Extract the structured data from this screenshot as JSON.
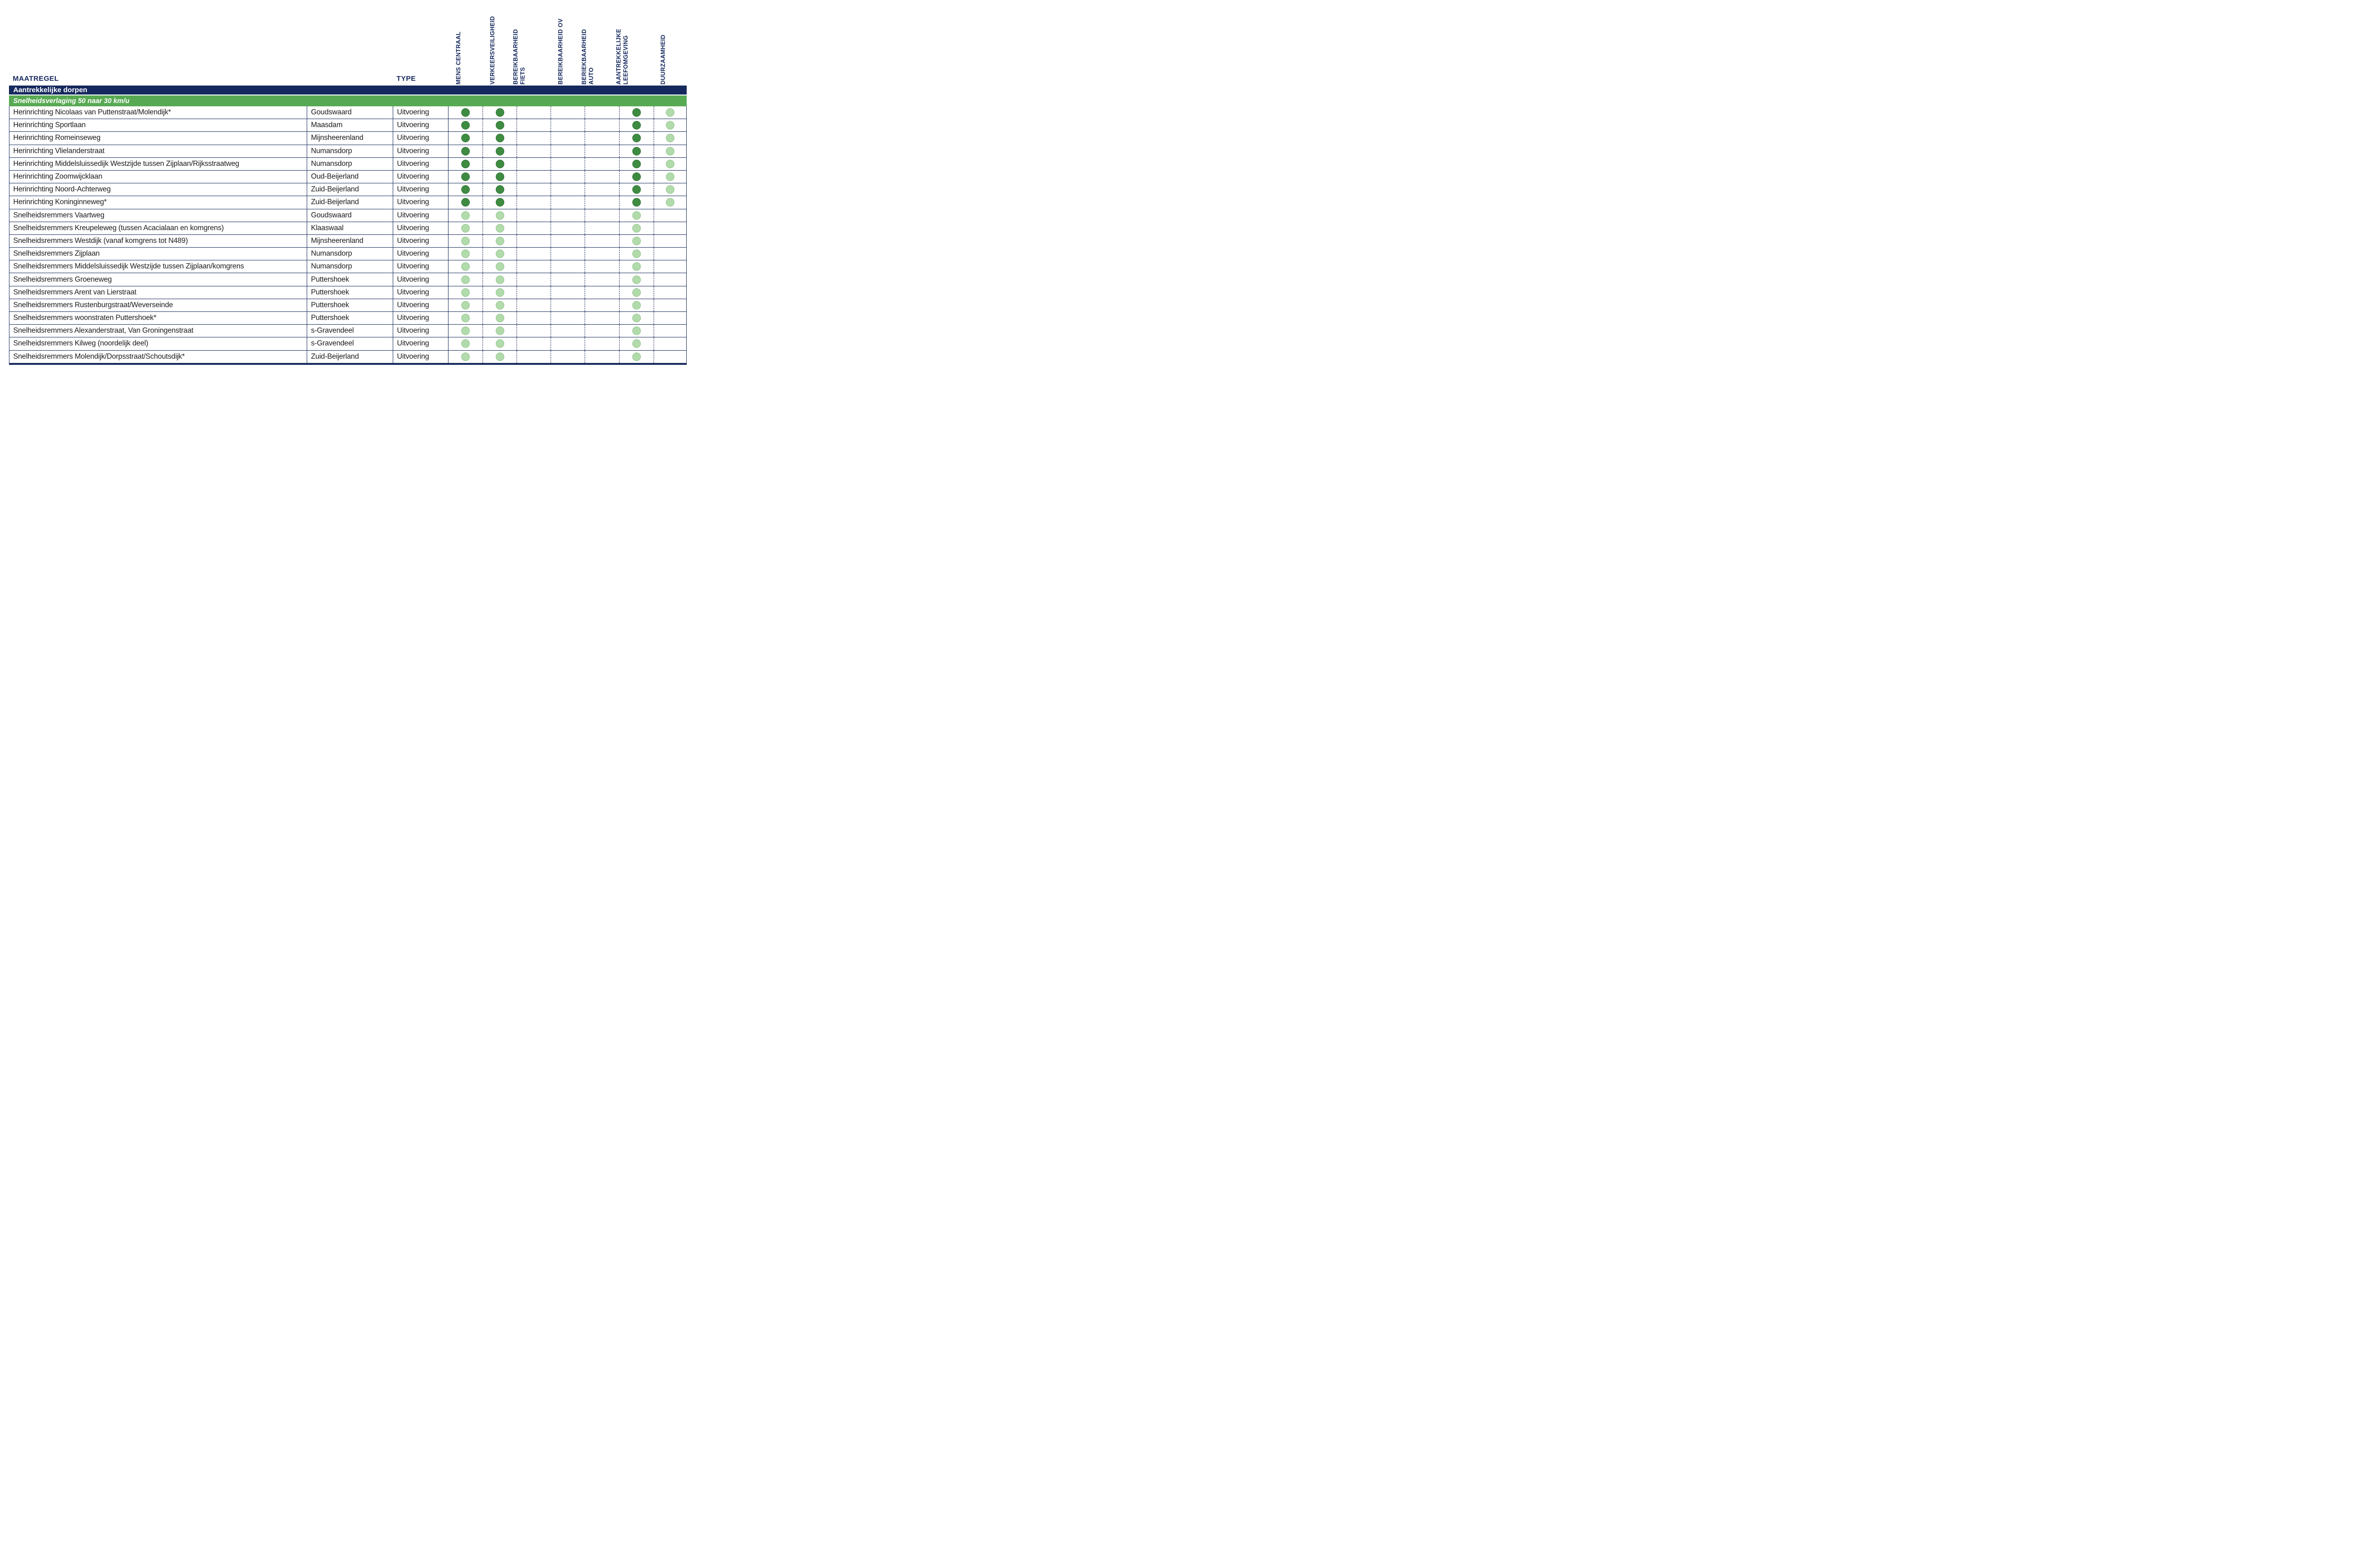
{
  "table": {
    "headers": {
      "maatregel": "MAATREGEL",
      "type": "TYPE"
    },
    "criteria_columns": [
      {
        "id": "mens-centraal",
        "label_lines": [
          "MENS CENTRAAL"
        ]
      },
      {
        "id": "verkeersveiligheid",
        "label_lines": [
          "VERKEERSVEILIGHEID"
        ]
      },
      {
        "id": "bereikbaarheid-fiets",
        "label_lines": [
          "BEREIKBAARHEID",
          "FIETS"
        ]
      },
      {
        "id": "bereikbaarheid-ov",
        "label_lines": [
          "BEREIKBAARHEID OV"
        ]
      },
      {
        "id": "beriekbaarheid-auto",
        "label_lines": [
          "BERIEKBAARHEID",
          "AUTO"
        ]
      },
      {
        "id": "aantrekkelijke-leefomgeving",
        "label_lines": [
          "AANTREKKELIJKE",
          "LEEFOMGEVING"
        ]
      },
      {
        "id": "duurzaamheid",
        "label_lines": [
          "DUURZAAMHEID"
        ]
      }
    ],
    "section_header": "Aantrekkelijke dorpen",
    "subsection_header": "Snelheidsverlaging 50 naar 30 km/u",
    "rows": [
      {
        "maatregel": "Herinrichting Nicolaas van Puttenstraat/Molendijk*",
        "plaats": "Goudswaard",
        "type": "Uitvoering",
        "dots": [
          "dark",
          "dark",
          "",
          "",
          "",
          "dark",
          "light"
        ]
      },
      {
        "maatregel": "Herinrichting Sportlaan",
        "plaats": "Maasdam",
        "type": "Uitvoering",
        "dots": [
          "dark",
          "dark",
          "",
          "",
          "",
          "dark",
          "light"
        ]
      },
      {
        "maatregel": "Herinrichting Romeinseweg",
        "plaats": "Mijnsheerenland",
        "type": "Uitvoering",
        "dots": [
          "dark",
          "dark",
          "",
          "",
          "",
          "dark",
          "light"
        ]
      },
      {
        "maatregel": "Herinrichting Vlielanderstraat",
        "plaats": "Numansdorp",
        "type": "Uitvoering",
        "dots": [
          "dark",
          "dark",
          "",
          "",
          "",
          "dark",
          "light"
        ]
      },
      {
        "maatregel": "Herinrichting Middelsluissedijk Westzijde tussen Zijplaan/Rijksstraatweg",
        "plaats": "Numansdorp",
        "type": "Uitvoering",
        "dots": [
          "dark",
          "dark",
          "",
          "",
          "",
          "dark",
          "light"
        ]
      },
      {
        "maatregel": "Herinrichting Zoomwijcklaan",
        "plaats": "Oud-Beijerland",
        "type": "Uitvoering",
        "dots": [
          "dark",
          "dark",
          "",
          "",
          "",
          "dark",
          "light"
        ]
      },
      {
        "maatregel": "Herinrichting Noord-Achterweg",
        "plaats": "Zuid-Beijerland",
        "type": "Uitvoering",
        "dots": [
          "dark",
          "dark",
          "",
          "",
          "",
          "dark",
          "light"
        ]
      },
      {
        "maatregel": "Herinrichting Koninginneweg*",
        "plaats": "Zuid-Beijerland",
        "type": "Uitvoering",
        "dots": [
          "dark",
          "dark",
          "",
          "",
          "",
          "dark",
          "light"
        ]
      },
      {
        "maatregel": "Snelheidsremmers Vaartweg",
        "plaats": "Goudswaard",
        "type": "Uitvoering",
        "dots": [
          "light",
          "light",
          "",
          "",
          "",
          "light",
          ""
        ]
      },
      {
        "maatregel": "Snelheidsremmers Kreupeleweg (tussen Acacialaan en komgrens)",
        "plaats": "Klaaswaal",
        "type": "Uitvoering",
        "dots": [
          "light",
          "light",
          "",
          "",
          "",
          "light",
          ""
        ]
      },
      {
        "maatregel": "Snelheidsremmers Westdijk (vanaf komgrens tot N489)",
        "plaats": "Mijnsheerenland",
        "type": "Uitvoering",
        "dots": [
          "light",
          "light",
          "",
          "",
          "",
          "light",
          ""
        ]
      },
      {
        "maatregel": "Snelheidsremmers Zijplaan",
        "plaats": "Numansdorp",
        "type": "Uitvoering",
        "dots": [
          "light",
          "light",
          "",
          "",
          "",
          "light",
          ""
        ]
      },
      {
        "maatregel": "Snelheidsremmers Middelsluissedijk Westzijde tussen Zijplaan/komgrens",
        "plaats": "Numansdorp",
        "type": "Uitvoering",
        "dots": [
          "light",
          "light",
          "",
          "",
          "",
          "light",
          ""
        ]
      },
      {
        "maatregel": "Snelheidsremmers Groeneweg",
        "plaats": "Puttershoek",
        "type": "Uitvoering",
        "dots": [
          "light",
          "light",
          "",
          "",
          "",
          "light",
          ""
        ]
      },
      {
        "maatregel": "Snelheidsremmers Arent van Lierstraat",
        "plaats": "Puttershoek",
        "type": "Uitvoering",
        "dots": [
          "light",
          "light",
          "",
          "",
          "",
          "light",
          ""
        ]
      },
      {
        "maatregel": "Snelheidsremmers Rustenburgstraat/Weverseinde",
        "plaats": "Puttershoek",
        "type": "Uitvoering",
        "dots": [
          "light",
          "light",
          "",
          "",
          "",
          "light",
          ""
        ]
      },
      {
        "maatregel": "Snelheidsremmers woonstraten Puttershoek*",
        "plaats": "Puttershoek",
        "type": "Uitvoering",
        "dots": [
          "light",
          "light",
          "",
          "",
          "",
          "light",
          ""
        ]
      },
      {
        "maatregel": "Snelheidsremmers Alexanderstraat, Van Groningenstraat",
        "plaats": "s-Gravendeel",
        "type": "Uitvoering",
        "dots": [
          "light",
          "light",
          "",
          "",
          "",
          "light",
          ""
        ]
      },
      {
        "maatregel": "Snelheidsremmers Kilweg (noordelijk deel)",
        "plaats": "s-Gravendeel",
        "type": "Uitvoering",
        "dots": [
          "light",
          "light",
          "",
          "",
          "",
          "light",
          ""
        ]
      },
      {
        "maatregel": "Snelheidsremmers Molendijk/Dorpsstraat/Schoutsdijk*",
        "plaats": "Zuid-Beijerland",
        "type": "Uitvoering",
        "dots": [
          "light",
          "light",
          "",
          "",
          "",
          "light",
          ""
        ]
      }
    ]
  },
  "colors": {
    "navy_band": "#16295E",
    "green_band": "#58A953",
    "line_navy": "#1F3160",
    "dot_strong": "#3E8C42",
    "dot_weak": "#B2DBAC"
  },
  "legend": {
    "dot_strong_meaning": "dark green score dot",
    "dot_weak_meaning": "light green score dot"
  }
}
